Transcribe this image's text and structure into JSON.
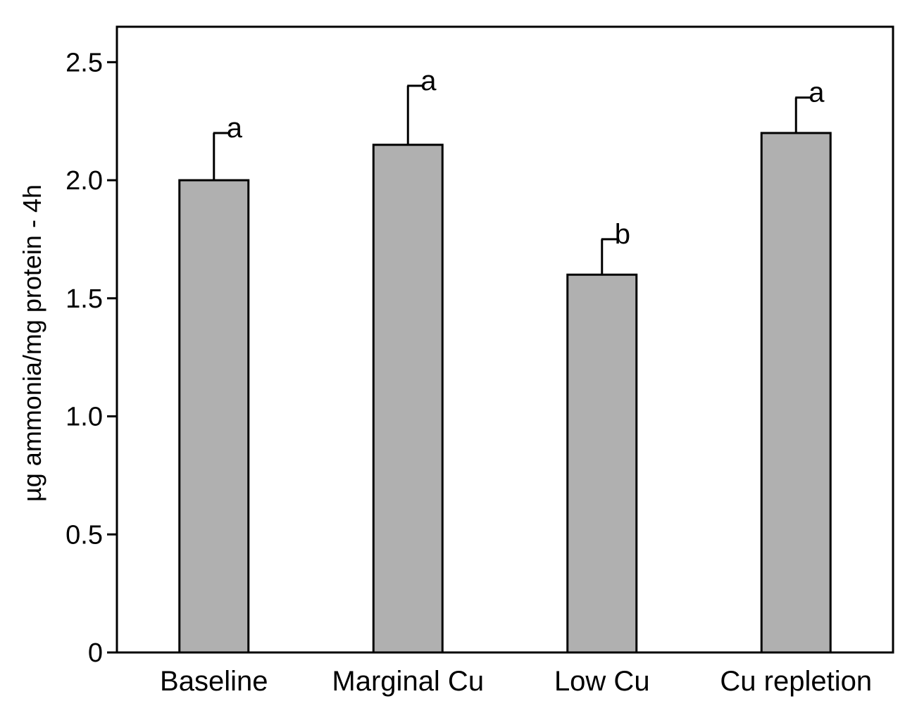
{
  "chart_data": {
    "type": "bar",
    "categories": [
      "Baseline",
      "Marginal Cu",
      "Low Cu",
      "Cu repletion"
    ],
    "values": [
      2.0,
      2.15,
      1.6,
      2.2
    ],
    "error_upper": [
      2.2,
      2.4,
      1.75,
      2.35
    ],
    "significance_letters": [
      "a",
      "a",
      "b",
      "a"
    ],
    "title": "",
    "xlabel": "",
    "ylabel": "µg ammonia/mg protein - 4h",
    "ylim": [
      0,
      2.65
    ],
    "y_ticks": [
      0,
      0.5,
      1.0,
      1.5,
      2.0,
      2.5
    ],
    "y_tick_labels": [
      "0",
      "0.5",
      "1.0",
      "1.5",
      "2.0",
      "2.5"
    ],
    "bar_color": "#b0b0b0",
    "grid": false,
    "legend": "none"
  }
}
